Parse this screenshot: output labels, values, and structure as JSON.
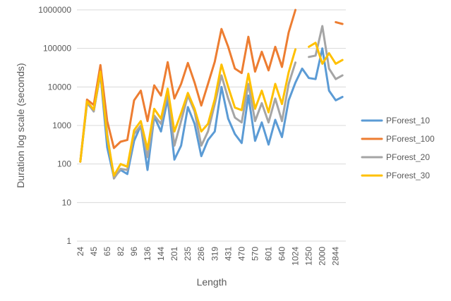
{
  "chart_data": {
    "type": "line",
    "title": "",
    "xlabel": "Length",
    "ylabel": "Duration log scale (seconds)",
    "y_scale": "log",
    "ylim": [
      1,
      1000000
    ],
    "y_ticks": [
      1,
      10,
      100,
      1000,
      10000,
      100000,
      1000000
    ],
    "y_tick_labels": [
      "1",
      "10",
      "100",
      "1000",
      "10000",
      "100000",
      "1000000"
    ],
    "grid": "horizontal",
    "legend_position": "right",
    "x_tick_labels": [
      "24",
      "45",
      "65",
      "82",
      "96",
      "136",
      "144",
      "201",
      "235",
      "286",
      "319",
      "431",
      "470",
      "570",
      "601",
      "640",
      "1024",
      "1250",
      "2000",
      "2844"
    ],
    "series": [
      {
        "name": "PForest_10",
        "color": "#5B9BD5",
        "values": [
          115,
          3800,
          2400,
          22000,
          270,
          45,
          70,
          55,
          400,
          1000,
          70,
          1700,
          700,
          5000,
          130,
          300,
          3000,
          1100,
          160,
          420,
          700,
          10000,
          1500,
          600,
          350,
          6000,
          400,
          1200,
          320,
          1400,
          500,
          4500,
          13000,
          30000,
          17000,
          16000,
          100000,
          8000,
          4500,
          5500
        ]
      },
      {
        "name": "PForest_100",
        "color": "#ED7D31",
        "values": [
          115,
          4700,
          3400,
          37000,
          1300,
          260,
          380,
          420,
          4500,
          8000,
          1300,
          11000,
          6000,
          44000,
          5000,
          12000,
          42000,
          13000,
          3300,
          12000,
          45000,
          320000,
          110000,
          30000,
          23000,
          200000,
          25000,
          82000,
          27000,
          110000,
          33000,
          260000,
          1000000,
          null,
          null,
          null,
          null,
          null,
          480000,
          430000
        ]
      },
      {
        "name": "PForest_20",
        "color": "#A5A5A5",
        "values": [
          115,
          4000,
          2300,
          23000,
          600,
          42,
          75,
          70,
          600,
          1000,
          150,
          1800,
          1100,
          7000,
          300,
          1300,
          6000,
          2300,
          300,
          700,
          3600,
          20000,
          5000,
          1600,
          1200,
          12000,
          1300,
          3800,
          1200,
          5000,
          1300,
          12000,
          43000,
          null,
          60000,
          65000,
          380000,
          30000,
          16000,
          20000
        ]
      },
      {
        "name": "PForest_30",
        "color": "#FFC000",
        "values": [
          115,
          4200,
          2600,
          25000,
          500,
          50,
          100,
          85,
          750,
          1300,
          240,
          2700,
          1500,
          9000,
          700,
          2100,
          7000,
          2700,
          700,
          1100,
          4800,
          38000,
          10000,
          2900,
          2500,
          22000,
          2700,
          8000,
          2200,
          12000,
          3600,
          24000,
          95000,
          null,
          110000,
          140000,
          40000,
          75000,
          40000,
          50000
        ]
      }
    ]
  }
}
